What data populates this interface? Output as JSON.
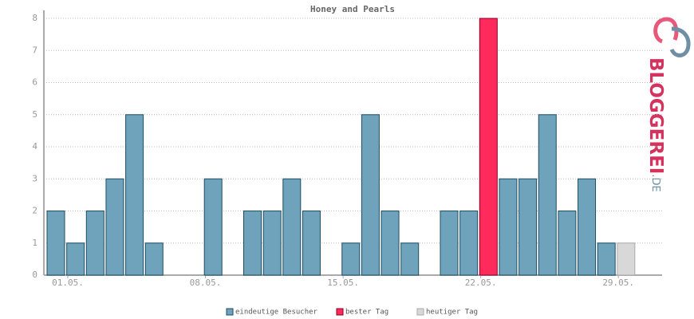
{
  "chart_data": {
    "type": "bar",
    "title": "Honey and Pearls",
    "categories": [
      "01.05.",
      null,
      null,
      null,
      null,
      null,
      null,
      "08.05.",
      null,
      null,
      null,
      null,
      null,
      null,
      "15.05.",
      null,
      null,
      null,
      null,
      null,
      null,
      "22.05.",
      null,
      null,
      null,
      null,
      null,
      null,
      "29.05.",
      null
    ],
    "values": [
      2,
      1,
      2,
      3,
      5,
      1,
      0,
      0,
      3,
      0,
      2,
      2,
      3,
      2,
      0,
      1,
      5,
      2,
      1,
      0,
      2,
      2,
      8,
      3,
      3,
      5,
      2,
      3,
      1,
      1
    ],
    "colors": [
      "#6ea3bb",
      "#6ea3bb",
      "#6ea3bb",
      "#6ea3bb",
      "#6ea3bb",
      "#6ea3bb",
      "#6ea3bb",
      "#6ea3bb",
      "#6ea3bb",
      "#6ea3bb",
      "#6ea3bb",
      "#6ea3bb",
      "#6ea3bb",
      "#6ea3bb",
      "#6ea3bb",
      "#6ea3bb",
      "#6ea3bb",
      "#6ea3bb",
      "#6ea3bb",
      "#6ea3bb",
      "#6ea3bb",
      "#6ea3bb",
      "#ff2a5c",
      "#6ea3bb",
      "#6ea3bb",
      "#6ea3bb",
      "#6ea3bb",
      "#6ea3bb",
      "#6ea3bb",
      "#d8d8d8"
    ],
    "legend": [
      {
        "name": "eindeutige Besucher",
        "color": "#6ea3bb"
      },
      {
        "name": "bester Tag",
        "color": "#ff2a5c"
      },
      {
        "name": "heutiger Tag",
        "color": "#d8d8d8"
      }
    ],
    "ylim": [
      0,
      8.25
    ],
    "yticks": [
      0,
      1,
      2,
      3,
      4,
      5,
      6,
      7,
      8
    ],
    "grid": true
  },
  "logo": {
    "text": "BLOGGEREI",
    "suffix": ".DE"
  }
}
